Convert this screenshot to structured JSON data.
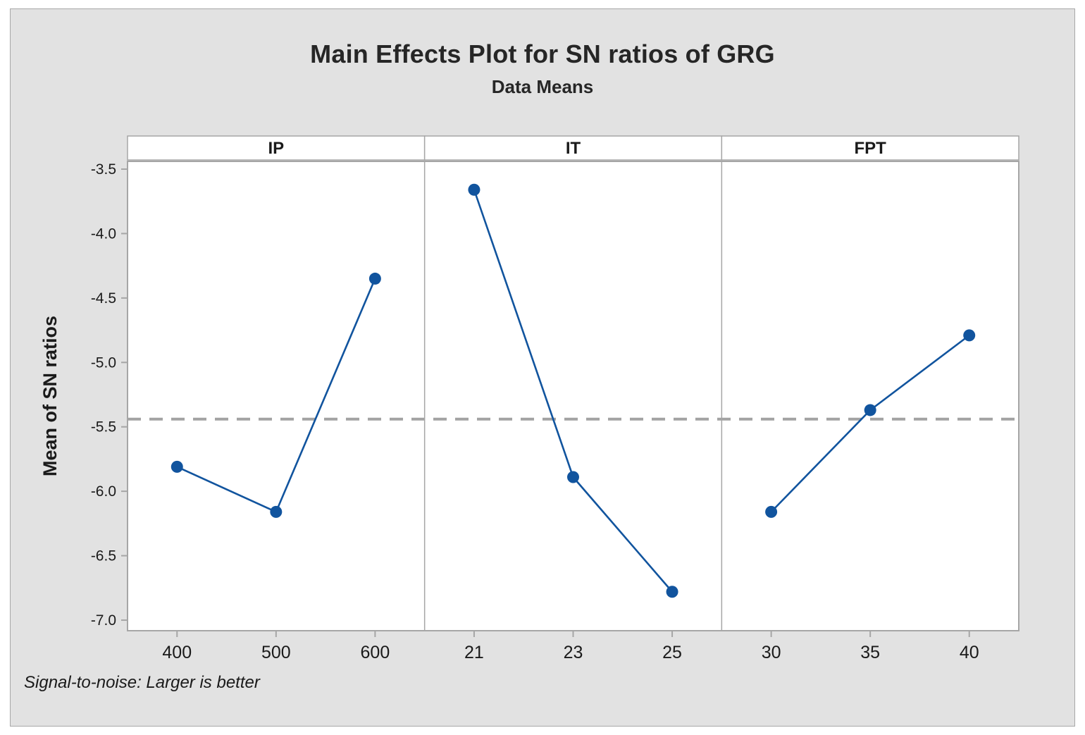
{
  "chart_data": {
    "type": "line",
    "title": "Main Effects Plot for SN ratios of GRG",
    "subtitle": "Data Means",
    "footnote": "Signal-to-noise: Larger is better",
    "ylabel": "Mean of SN ratios",
    "ylim": [
      -7.0,
      -3.5
    ],
    "ytick_values": [
      -3.5,
      -4.0,
      -4.5,
      -5.0,
      -5.5,
      -6.0,
      -6.5,
      -7.0
    ],
    "ytick_labels": [
      "-3.5",
      "-4.0",
      "-4.5",
      "-5.0",
      "-5.5",
      "-6.0",
      "-6.5",
      "-7.0"
    ],
    "reference_line": -5.44,
    "grid": false,
    "legend": "none",
    "panels": [
      {
        "label": "IP",
        "categories": [
          "400",
          "500",
          "600"
        ],
        "values": [
          -5.81,
          -6.16,
          -4.35
        ]
      },
      {
        "label": "IT",
        "categories": [
          "21",
          "23",
          "25"
        ],
        "values": [
          -3.66,
          -5.89,
          -6.78
        ]
      },
      {
        "label": "FPT",
        "categories": [
          "30",
          "35",
          "40"
        ],
        "values": [
          -6.16,
          -5.37,
          -4.79
        ]
      }
    ],
    "colors": {
      "series": "#11549e",
      "reference_line": "#a3a3a3",
      "frame": "#a6a6a6",
      "figure_background": "#e2e2e2",
      "panel_background": "#ffffff",
      "text": "#1a1a1a"
    }
  }
}
